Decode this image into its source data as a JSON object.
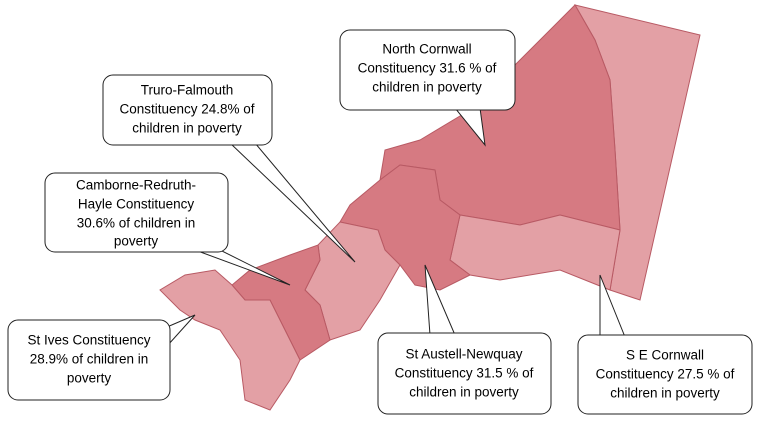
{
  "callouts": [
    {
      "lines": [
        "North  Cornwall",
        "Constituency 31.6 % of",
        "children in poverty"
      ]
    },
    {
      "lines": [
        "Truro-Falmouth",
        "Constituency 24.8% of",
        "children in poverty"
      ]
    },
    {
      "lines": [
        "Camborne-Redruth-",
        "Hayle  Constituency",
        "30.6% of children in",
        "poverty"
      ]
    },
    {
      "lines": [
        "St Ives Constituency",
        "28.9% of children in",
        "poverty"
      ]
    },
    {
      "lines": [
        "St Austell-Newquay",
        "Constituency 31.5 % of",
        "children in poverty"
      ]
    },
    {
      "lines": [
        "S E Cornwall",
        "Constituency 27.5 % of",
        "children in poverty"
      ]
    }
  ]
}
